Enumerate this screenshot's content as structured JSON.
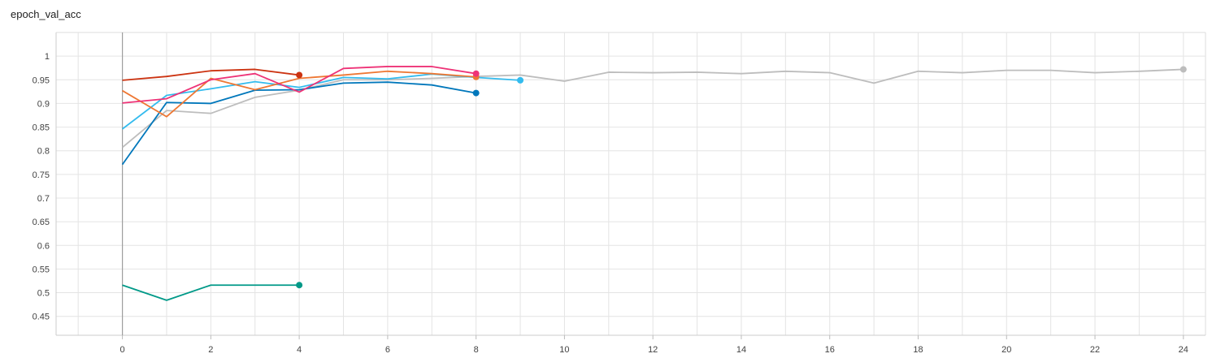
{
  "chart_data": {
    "type": "line",
    "title": "epoch_val_acc",
    "xlabel": "",
    "ylabel": "",
    "xlim": [
      -1.5,
      24.5
    ],
    "ylim": [
      0.41,
      1.05
    ],
    "grid": true,
    "x_ticks": [
      "0",
      "2",
      "4",
      "6",
      "8",
      "10",
      "12",
      "14",
      "16",
      "18",
      "20",
      "22",
      "24"
    ],
    "y_ticks": [
      "0.45",
      "0.5",
      "0.55",
      "0.6",
      "0.65",
      "0.7",
      "0.75",
      "0.8",
      "0.85",
      "0.9",
      "0.95",
      "1"
    ],
    "series": [
      {
        "color": "#bdbdbd",
        "x": [
          0,
          1,
          2,
          3,
          4,
          5,
          6,
          7,
          8,
          9,
          10,
          11,
          12,
          13,
          14,
          15,
          16,
          17,
          18,
          19,
          20,
          21,
          22,
          23,
          24
        ],
        "y": [
          0.807,
          0.885,
          0.879,
          0.913,
          0.928,
          0.95,
          0.95,
          0.953,
          0.957,
          0.96,
          0.947,
          0.966,
          0.965,
          0.966,
          0.963,
          0.968,
          0.965,
          0.943,
          0.968,
          0.965,
          0.97,
          0.97,
          0.965,
          0.968,
          0.972
        ]
      },
      {
        "color": "#0077bb",
        "x": [
          0,
          1,
          2,
          3,
          4,
          5,
          6,
          7,
          8
        ],
        "y": [
          0.771,
          0.902,
          0.9,
          0.928,
          0.929,
          0.943,
          0.945,
          0.939,
          0.922
        ]
      },
      {
        "color": "#33bbee",
        "x": [
          0,
          1,
          2,
          3,
          4,
          5,
          6,
          7,
          8,
          9
        ],
        "y": [
          0.846,
          0.917,
          0.931,
          0.946,
          0.934,
          0.955,
          0.952,
          0.962,
          0.955,
          0.949
        ]
      },
      {
        "color": "#ee7733",
        "x": [
          0,
          1,
          2,
          3,
          4,
          5,
          6,
          7,
          8
        ],
        "y": [
          0.927,
          0.872,
          0.953,
          0.929,
          0.953,
          0.96,
          0.968,
          0.963,
          0.956
        ]
      },
      {
        "color": "#ee3377",
        "x": [
          0,
          1,
          2,
          3,
          4,
          5,
          6,
          7,
          8
        ],
        "y": [
          0.901,
          0.91,
          0.95,
          0.963,
          0.924,
          0.974,
          0.978,
          0.978,
          0.963
        ]
      },
      {
        "color": "#cc3311",
        "x": [
          0,
          1,
          2,
          3,
          4
        ],
        "y": [
          0.949,
          0.957,
          0.969,
          0.972,
          0.96
        ]
      },
      {
        "color": "#009988",
        "x": [
          0,
          1,
          2,
          3,
          4
        ],
        "y": [
          0.516,
          0.484,
          0.516,
          0.516,
          0.516
        ]
      }
    ]
  }
}
